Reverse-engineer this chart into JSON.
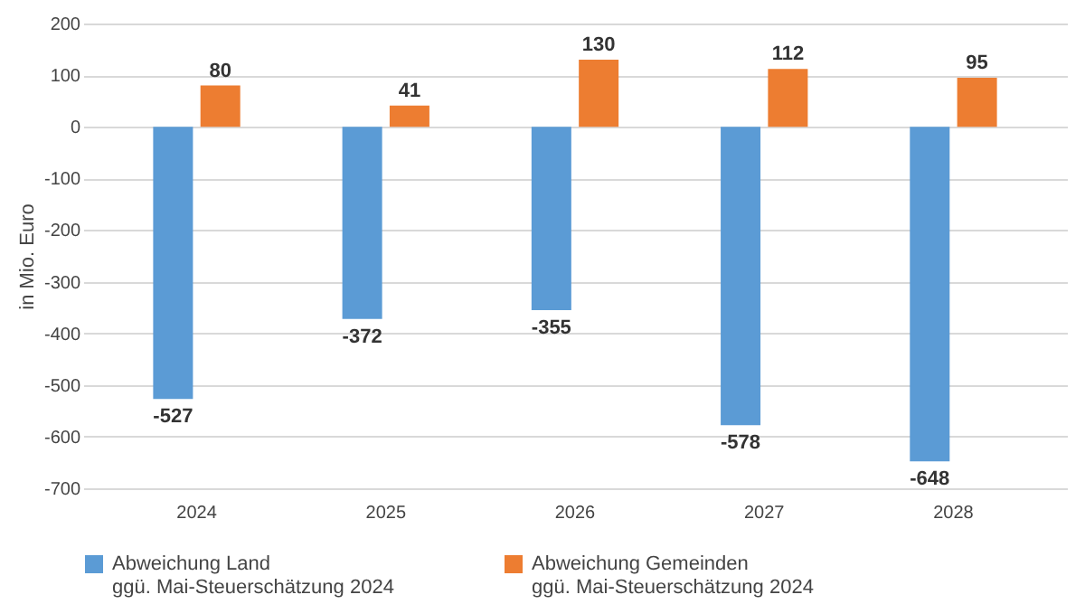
{
  "chart_data": {
    "type": "bar",
    "ylabel": "in Mio. Euro",
    "categories": [
      "2024",
      "2025",
      "2026",
      "2027",
      "2028"
    ],
    "series": [
      {
        "name": "Abweichung Land\nggü. Mai-Steuerschätzung 2024",
        "color": "#5b9bd5",
        "values": [
          -527,
          -372,
          -355,
          -578,
          -648
        ]
      },
      {
        "name": "Abweichung Gemeinden\nggü. Mai-Steuerschätzung 2024",
        "color": "#ed7d31",
        "values": [
          80,
          41,
          130,
          112,
          95
        ]
      }
    ],
    "ylim": [
      -700,
      200
    ],
    "yticks": [
      -700,
      -600,
      -500,
      -400,
      -300,
      -200,
      -100,
      0,
      100,
      200
    ],
    "grid": "y",
    "legend": "bottom",
    "data_labels": true
  }
}
